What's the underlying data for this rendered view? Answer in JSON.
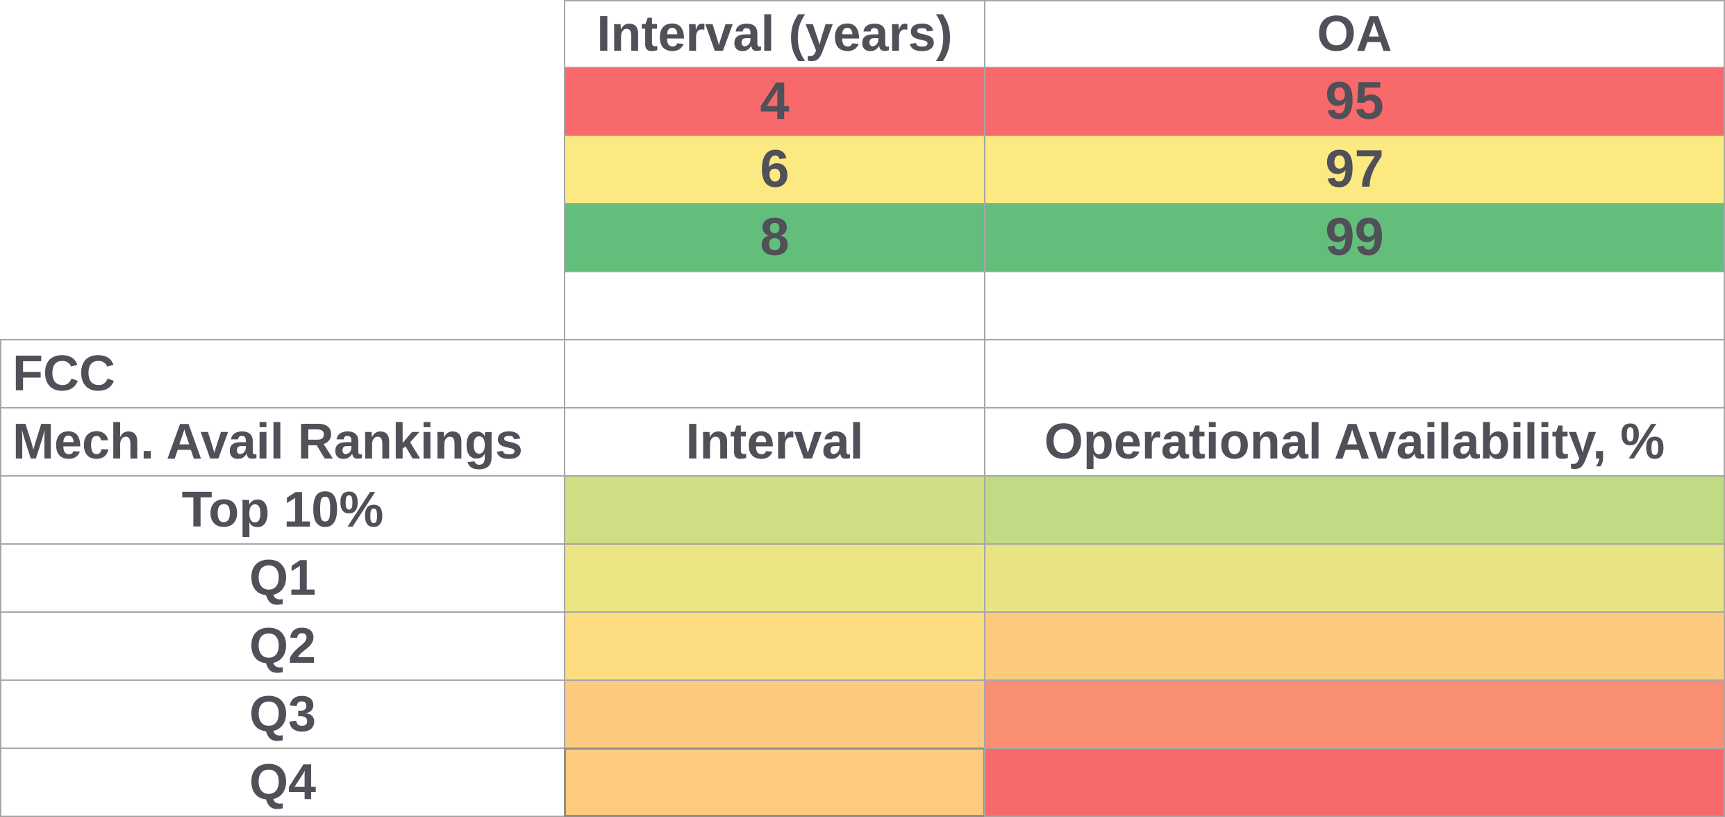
{
  "legend": {
    "headers": {
      "interval": "Interval (years)",
      "oa": "OA"
    },
    "rows": [
      {
        "interval": "4",
        "oa": "95",
        "color": "#f8696b"
      },
      {
        "interval": "6",
        "oa": "97",
        "color": "#fde982"
      },
      {
        "interval": "8",
        "oa": "99",
        "color": "#63be7b"
      }
    ]
  },
  "table": {
    "section_title": "FCC",
    "headers": {
      "ranking": "Mech. Avail Rankings",
      "interval": "Interval",
      "oa": "Operational Availability, %"
    },
    "rows": [
      {
        "ranking": "Top 10%",
        "interval_color": "#cfde82",
        "oa_color": "#bfdb84"
      },
      {
        "ranking": "Q1",
        "interval_color": "#ece584",
        "oa_color": "#e8e483"
      },
      {
        "ranking": "Q2",
        "interval_color": "#fddc80",
        "oa_color": "#fdca7d"
      },
      {
        "ranking": "Q3",
        "interval_color": "#fcca7e",
        "oa_color": "#fa8e72"
      },
      {
        "ranking": "Q4",
        "interval_color": "#fdcb7e",
        "oa_color": "#f8696b"
      }
    ]
  },
  "colors": {
    "text": "#4f5058",
    "grid": "#a6a6a6",
    "background": "#ffffff"
  }
}
